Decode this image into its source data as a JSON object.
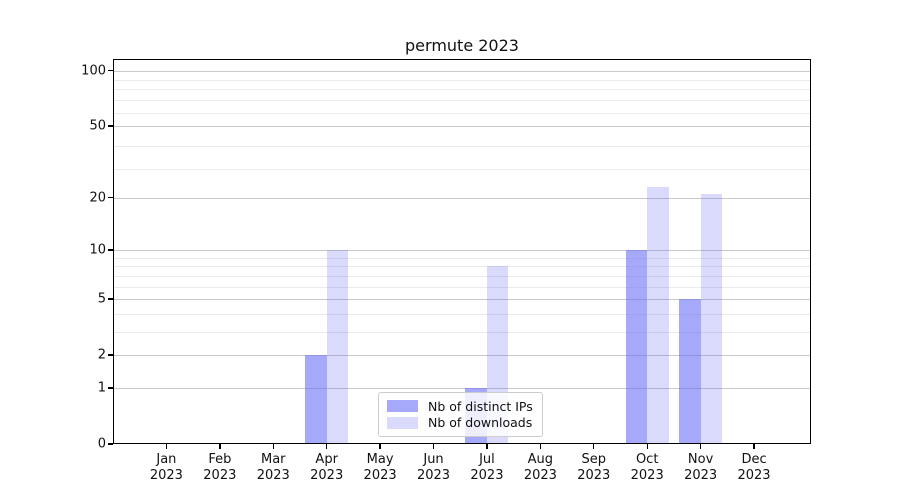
{
  "chart_data": {
    "type": "bar",
    "title": "permute 2023",
    "categories": [
      {
        "month": "Jan",
        "year": "2023"
      },
      {
        "month": "Feb",
        "year": "2023"
      },
      {
        "month": "Mar",
        "year": "2023"
      },
      {
        "month": "Apr",
        "year": "2023"
      },
      {
        "month": "May",
        "year": "2023"
      },
      {
        "month": "Jun",
        "year": "2023"
      },
      {
        "month": "Jul",
        "year": "2023"
      },
      {
        "month": "Aug",
        "year": "2023"
      },
      {
        "month": "Sep",
        "year": "2023"
      },
      {
        "month": "Oct",
        "year": "2023"
      },
      {
        "month": "Nov",
        "year": "2023"
      },
      {
        "month": "Dec",
        "year": "2023"
      }
    ],
    "series": [
      {
        "key": "ips",
        "name": "Nb of distinct IPs",
        "color": "rgba(107,110,245,0.60)",
        "values": [
          0,
          0,
          0,
          2,
          0,
          0,
          1,
          0,
          0,
          10,
          5,
          0
        ]
      },
      {
        "key": "downloads",
        "name": "Nb of downloads",
        "color": "rgba(107,110,245,0.25)",
        "values": [
          0,
          0,
          0,
          10,
          0,
          0,
          8,
          0,
          0,
          23,
          21,
          0
        ]
      }
    ],
    "yscale": "log1p",
    "yticks": [
      0,
      1,
      2,
      5,
      10,
      20,
      50,
      100
    ],
    "minor_yticks": [
      3,
      4,
      6,
      7,
      8,
      9,
      29,
      39,
      59,
      69,
      79,
      89
    ],
    "ylim": [
      0,
      114
    ],
    "grid": true,
    "legend_position": "lower center",
    "colors": {
      "grid_major": "#c9c9c9",
      "grid_minor": "#eaeaea",
      "spine": "#000000",
      "text": "#111111"
    }
  }
}
